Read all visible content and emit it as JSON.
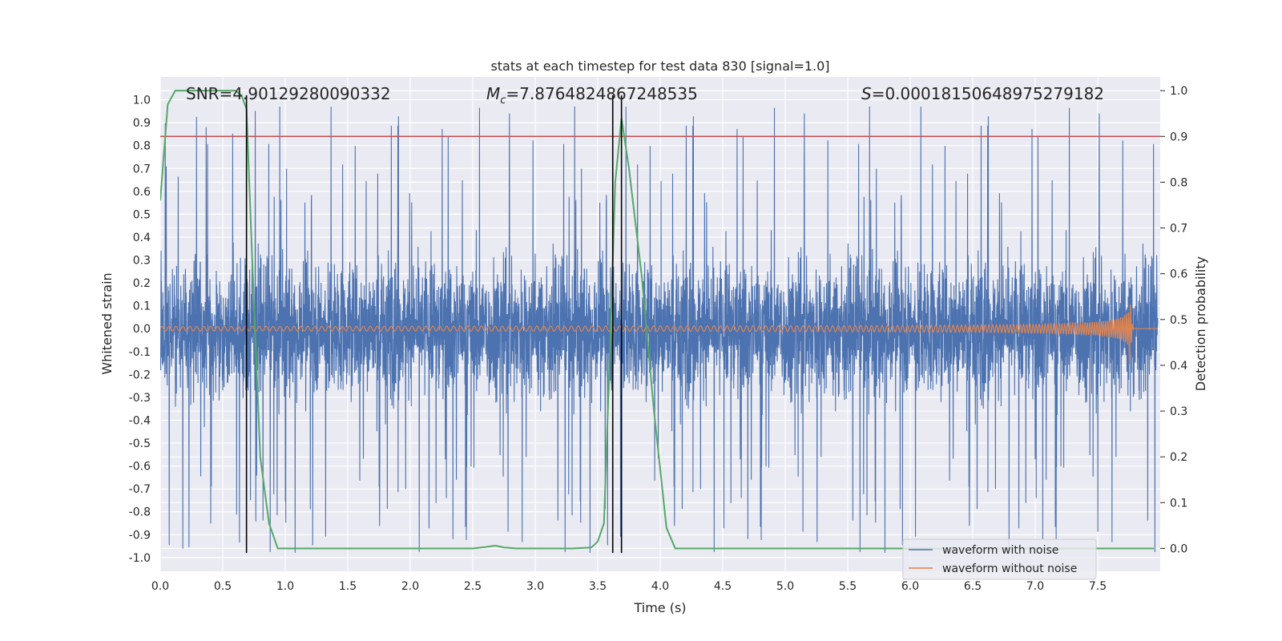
{
  "chart_data": {
    "type": "line",
    "title": "stats at each timestep for test data 830 [signal=1.0]",
    "xlabel": "Time (s)",
    "ylabel": "Whitened strain",
    "ylabel_right": "Detection probability",
    "xlim": [
      0.0,
      8.0
    ],
    "ylim": [
      -1.06,
      1.1
    ],
    "ylim_right": [
      -0.05,
      1.03
    ],
    "xticks": [
      0.0,
      0.5,
      1.0,
      1.5,
      2.0,
      2.5,
      3.0,
      3.5,
      4.0,
      4.5,
      5.0,
      5.5,
      6.0,
      6.5,
      7.0,
      7.5
    ],
    "xtick_labels": [
      "0.0",
      "0.5",
      "1.0",
      "1.5",
      "2.0",
      "2.5",
      "3.0",
      "3.5",
      "4.0",
      "4.5",
      "5.0",
      "5.5",
      "6.0",
      "6.5",
      "7.0",
      "7.5"
    ],
    "yticks": [
      -1.0,
      -0.9,
      -0.8,
      -0.7,
      -0.6,
      -0.5,
      -0.4,
      -0.3,
      -0.2,
      -0.1,
      0.0,
      0.1,
      0.2,
      0.3,
      0.4,
      0.5,
      0.6,
      0.7,
      0.8,
      0.9,
      1.0
    ],
    "ytick_labels": [
      "-1.0",
      "-0.9",
      "-0.8",
      "-0.7",
      "-0.6",
      "-0.5",
      "-0.4",
      "-0.3",
      "-0.2",
      "-0.1",
      "0.0",
      "0.1",
      "0.2",
      "0.3",
      "0.4",
      "0.5",
      "0.6",
      "0.7",
      "0.8",
      "0.9",
      "1.0"
    ],
    "yticks_right": [
      0.0,
      0.1,
      0.2,
      0.3,
      0.4,
      0.5,
      0.6,
      0.7,
      0.8,
      0.9,
      1.0
    ],
    "ytick_labels_right": [
      "0.0",
      "0.1",
      "0.2",
      "0.3",
      "0.4",
      "0.5",
      "0.6",
      "0.7",
      "0.8",
      "0.9",
      "1.0"
    ],
    "grid": true,
    "legend_position": "lower-right",
    "annotations": {
      "snr": "SNR=4.90129280090332",
      "mc_prefix": "M",
      "mc_sub": "c",
      "mc_value": "=7.8764824867248535",
      "s_prefix": "S",
      "s_value": "=0.00018150648975279182"
    },
    "series": [
      {
        "name": "waveform with noise",
        "color": "#4c72b0",
        "kind": "noise",
        "envelope_core": 0.16,
        "typical_peak": 0.55,
        "max_abs": 1.0
      },
      {
        "name": "waveform without noise",
        "color": "#dd8452",
        "kind": "chirp",
        "start_amplitude": 0.01,
        "peak_amplitude": 0.18,
        "peak_time": 7.75,
        "end_time": 7.78
      },
      {
        "name": "detection probability",
        "color": "#55a868",
        "axis": "right",
        "x": [
          0.0,
          0.06,
          0.12,
          0.2,
          0.3,
          0.4,
          0.5,
          0.6,
          0.65,
          0.69,
          0.74,
          0.8,
          0.87,
          0.94,
          1.0,
          1.5,
          2.0,
          2.5,
          2.6,
          2.68,
          2.75,
          2.85,
          3.0,
          3.3,
          3.45,
          3.5,
          3.55,
          3.6,
          3.64,
          3.69,
          3.75,
          3.85,
          3.95,
          4.05,
          4.12,
          4.2,
          5.0,
          6.0,
          7.0,
          7.95
        ],
        "y": [
          0.76,
          0.97,
          1.0,
          1.0,
          1.0,
          1.0,
          1.0,
          1.0,
          0.99,
          0.96,
          0.6,
          0.2,
          0.055,
          0.0,
          0.0,
          0.0,
          0.0,
          0.0,
          0.003,
          0.006,
          0.002,
          0.0,
          0.0,
          0.0,
          0.002,
          0.015,
          0.055,
          0.45,
          0.8,
          0.94,
          0.83,
          0.6,
          0.3,
          0.045,
          0.0,
          0.0,
          0.0,
          0.0,
          0.0,
          0.0
        ]
      },
      {
        "name": "threshold",
        "color": "#c44e52",
        "axis": "right",
        "kind": "hline",
        "y": 0.9
      }
    ],
    "vlines": {
      "color": "#000000",
      "x": [
        0.69,
        3.62,
        3.69
      ],
      "ymin": -0.98,
      "ymax": 1.02
    }
  }
}
